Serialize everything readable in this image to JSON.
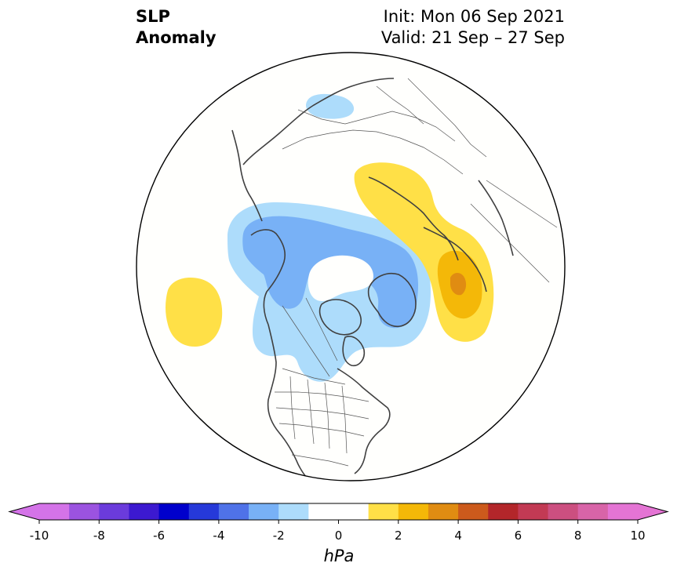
{
  "title": {
    "main_line1": "SLP",
    "main_line2": "Anomaly",
    "init": "Init: Mon 06 Sep 2021",
    "valid": "Valid: 21 Sep – 27 Sep"
  },
  "colorbar": {
    "unit": "hPa",
    "min": -10,
    "max": 10,
    "step": 1,
    "extend": "both",
    "tick_values": [
      -10,
      -8,
      -6,
      -4,
      -2,
      0,
      2,
      4,
      6,
      8,
      10
    ],
    "tick_labels": [
      "-10",
      "-8",
      "-6",
      "-4",
      "-2",
      "0",
      "2",
      "4",
      "6",
      "8",
      "10"
    ],
    "colors": [
      "#d473e8",
      "#9b53e0",
      "#6b3bdc",
      "#3c19d0",
      "#0000cc",
      "#2639d9",
      "#4f72e8",
      "#78b1f6",
      "#addcfb",
      "#ffffff",
      "#ffffff",
      "#ffe047",
      "#f4b808",
      "#e08c12",
      "#cc5a1c",
      "#b3262a",
      "#c23a54",
      "#cc4f80",
      "#d864a8",
      "#e474d4"
    ],
    "extend_min_color": "#d473e8",
    "extend_max_color": "#e474d4"
  },
  "map": {
    "projection": "north-polar-stereographic",
    "background": "#fffffd",
    "coastline_color": "#404040",
    "anomaly_regions": [
      {
        "label": "negative -1 to -2 hPa",
        "value_range": [
          -2,
          -1
        ],
        "color": "#addcfb"
      },
      {
        "label": "negative -2 to -3 hPa",
        "value_range": [
          -3,
          -2
        ],
        "color": "#78b1f6"
      },
      {
        "label": "positive 1 to 2 hPa",
        "value_range": [
          1,
          2
        ],
        "color": "#ffe047"
      },
      {
        "label": "positive 2 to 3 hPa",
        "value_range": [
          2,
          3
        ],
        "color": "#f4b808"
      },
      {
        "label": "positive 3 to 4 hPa",
        "value_range": [
          3,
          4
        ],
        "color": "#e08c12"
      }
    ]
  }
}
